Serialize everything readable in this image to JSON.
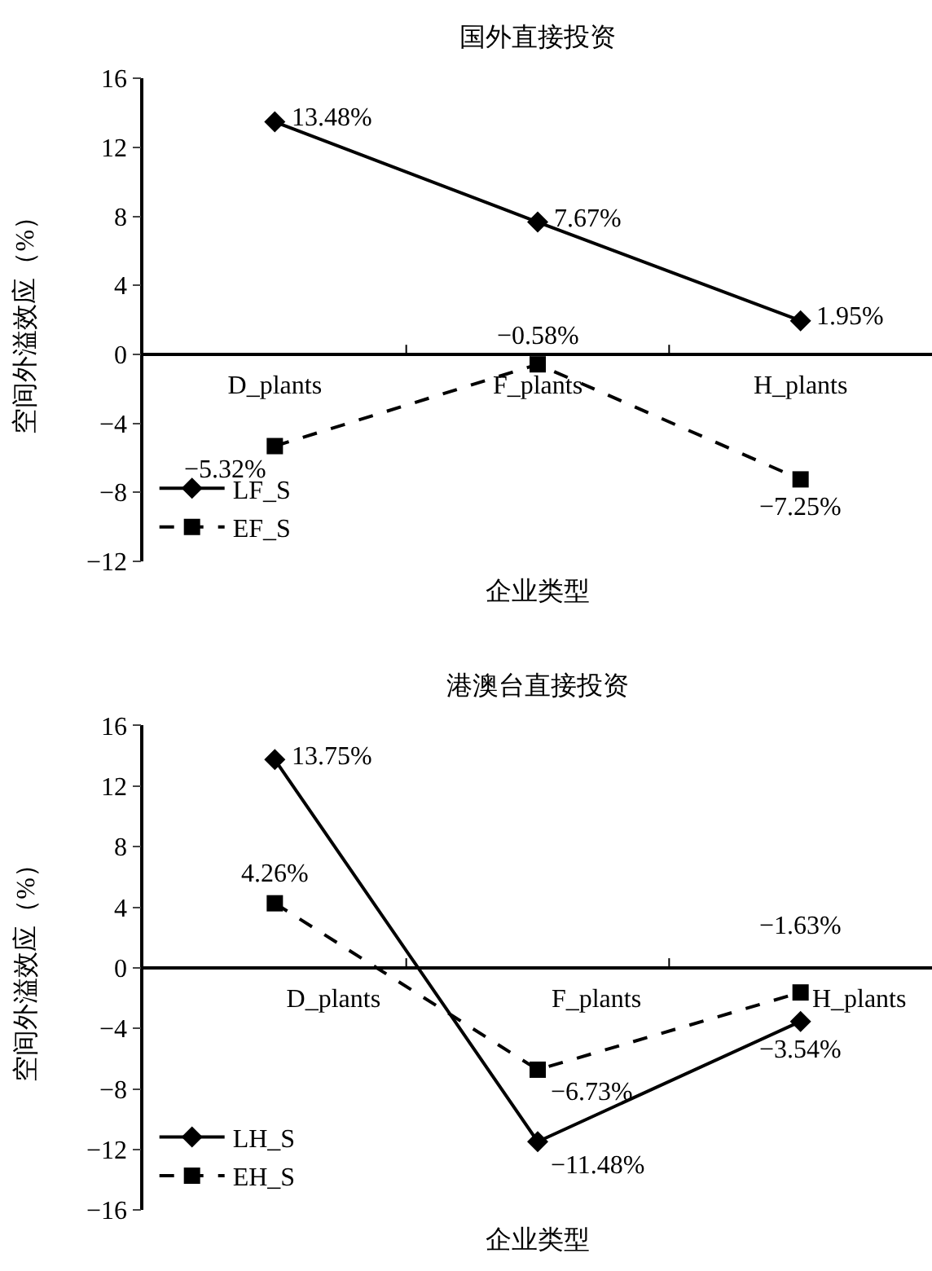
{
  "chart_data": [
    {
      "type": "line",
      "title": "国外直接投资",
      "xlabel": "企业类型",
      "ylabel": "空间外溢效应（%）",
      "categories": [
        "D_plants",
        "F_plants",
        "H_plants"
      ],
      "ylim": [
        -12,
        16
      ],
      "yticks": [
        -12,
        -8,
        -4,
        0,
        4,
        8,
        12,
        16
      ],
      "legend": "bottom left",
      "series": [
        {
          "name": "LF_S",
          "color": "#000000",
          "marker": "diamond",
          "line_style": "solid",
          "values": [
            13.48,
            7.67,
            1.95
          ],
          "value_labels": [
            "13.48%",
            "7.67%",
            "1.95%"
          ]
        },
        {
          "name": "EF_S",
          "color": "#000000",
          "marker": "square",
          "line_style": "dashed",
          "values": [
            -5.32,
            -0.58,
            -7.25
          ],
          "value_labels": [
            "−5.32%",
            "−0.58%",
            "−7.25%"
          ]
        }
      ]
    },
    {
      "type": "line",
      "title": "港澳台直接投资",
      "xlabel": "企业类型",
      "ylabel": "空间外溢效应（%）",
      "categories": [
        "D_plants",
        "F_plants",
        "H_plants"
      ],
      "ylim": [
        -16,
        16
      ],
      "yticks": [
        -16,
        -12,
        -8,
        -4,
        0,
        4,
        8,
        12,
        16
      ],
      "legend": "bottom left",
      "series": [
        {
          "name": "LH_S",
          "color": "#000000",
          "marker": "diamond",
          "line_style": "solid",
          "values": [
            13.75,
            -11.48,
            -3.54
          ],
          "value_labels": [
            "13.75%",
            "−11.48%",
            "−3.54%"
          ]
        },
        {
          "name": "EH_S",
          "color": "#000000",
          "marker": "square",
          "line_style": "dashed",
          "values": [
            4.26,
            -6.73,
            -1.63
          ],
          "value_labels": [
            "4.26%",
            "−6.73%",
            "−1.63%"
          ]
        }
      ]
    }
  ]
}
